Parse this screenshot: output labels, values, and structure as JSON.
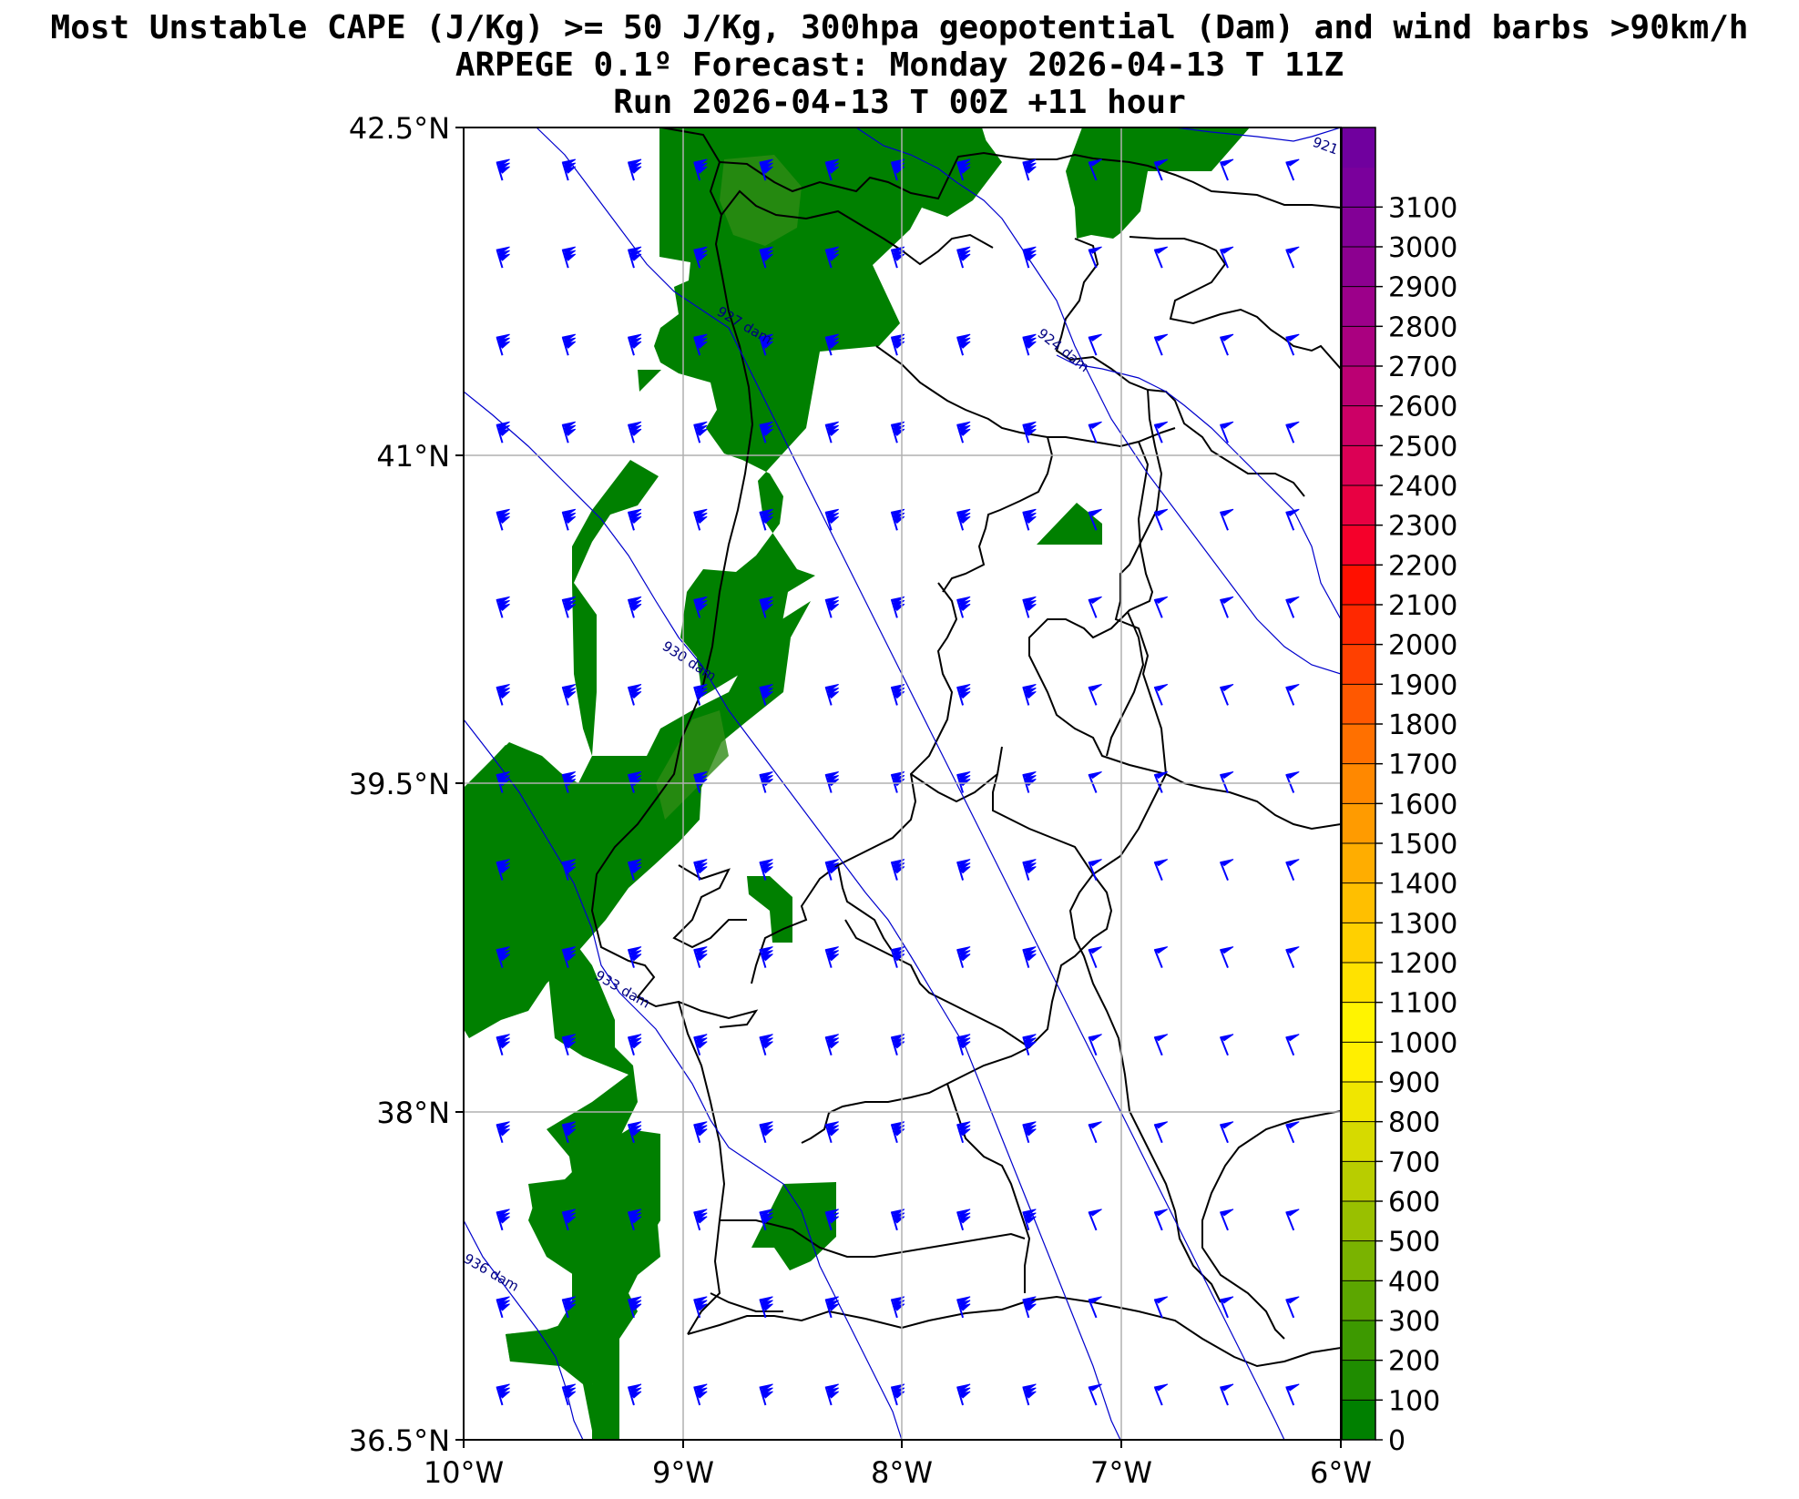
{
  "title": {
    "line1": "Most Unstable CAPE (J/Kg) >= 50 J/Kg, 300hpa geopotential (Dam) and wind barbs >90km/h",
    "line2": "ARPEGE 0.1º Forecast: Monday 2026-04-13 T 11Z",
    "line3": "Run 2026-04-13 T 00Z +11 hour"
  },
  "map": {
    "lon_range": [
      -10,
      -6
    ],
    "lat_range": [
      36.5,
      42.5
    ],
    "lon_ticks": [
      "10°W",
      "9°W",
      "8°W",
      "7°W",
      "6°W"
    ],
    "lat_ticks": [
      "42.5°N",
      "41°N",
      "39.5°N",
      "38°N",
      "36.5°N"
    ],
    "grid": true,
    "land_color": "#ffffff",
    "cape_fill_color": "#008000",
    "cape_fill_light_color": "#2e8b14",
    "contour_color": "#00008b",
    "barb_color": "#0000ff",
    "contour_labels": [
      "921",
      "927 dam",
      "924 dam",
      "930 dam",
      "933 dam",
      "936 dam"
    ],
    "barb_lons": [
      -9.84,
      -9.54,
      -9.24,
      -8.94,
      -8.64,
      -8.34,
      -8.04,
      -7.74,
      -7.44,
      -7.14,
      -6.84,
      -6.54,
      -6.24
    ],
    "barb_lats": [
      42.3,
      41.9,
      41.5,
      41.1,
      40.7,
      40.3,
      39.9,
      39.5,
      39.1,
      38.7,
      38.3,
      37.9,
      37.5,
      37.1,
      36.7
    ]
  },
  "colorbar": {
    "ticks": [
      "0",
      "100",
      "200",
      "300",
      "400",
      "500",
      "600",
      "700",
      "800",
      "900",
      "1000",
      "1100",
      "1200",
      "1300",
      "1400",
      "1500",
      "1600",
      "1700",
      "1800",
      "1900",
      "2000",
      "2100",
      "2200",
      "2300",
      "2400",
      "2500",
      "2600",
      "2700",
      "2800",
      "2900",
      "3000",
      "3100"
    ],
    "colors": [
      "#008000",
      "#1f8c00",
      "#3d9900",
      "#5ca600",
      "#7ab300",
      "#99c000",
      "#b8cd00",
      "#d6da00",
      "#f0e600",
      "#ffef00",
      "#fff400",
      "#ffe200",
      "#ffd000",
      "#ffbf00",
      "#ffad00",
      "#ff9b00",
      "#ff8800",
      "#ff7000",
      "#ff5800",
      "#ff4000",
      "#ff2800",
      "#ff1000",
      "#f5002a",
      "#e80042",
      "#dc0055",
      "#cc0066",
      "#bb0073",
      "#aa0080",
      "#9c008a",
      "#8c0090",
      "#820096",
      "#7a009c",
      "#70009e"
    ]
  }
}
